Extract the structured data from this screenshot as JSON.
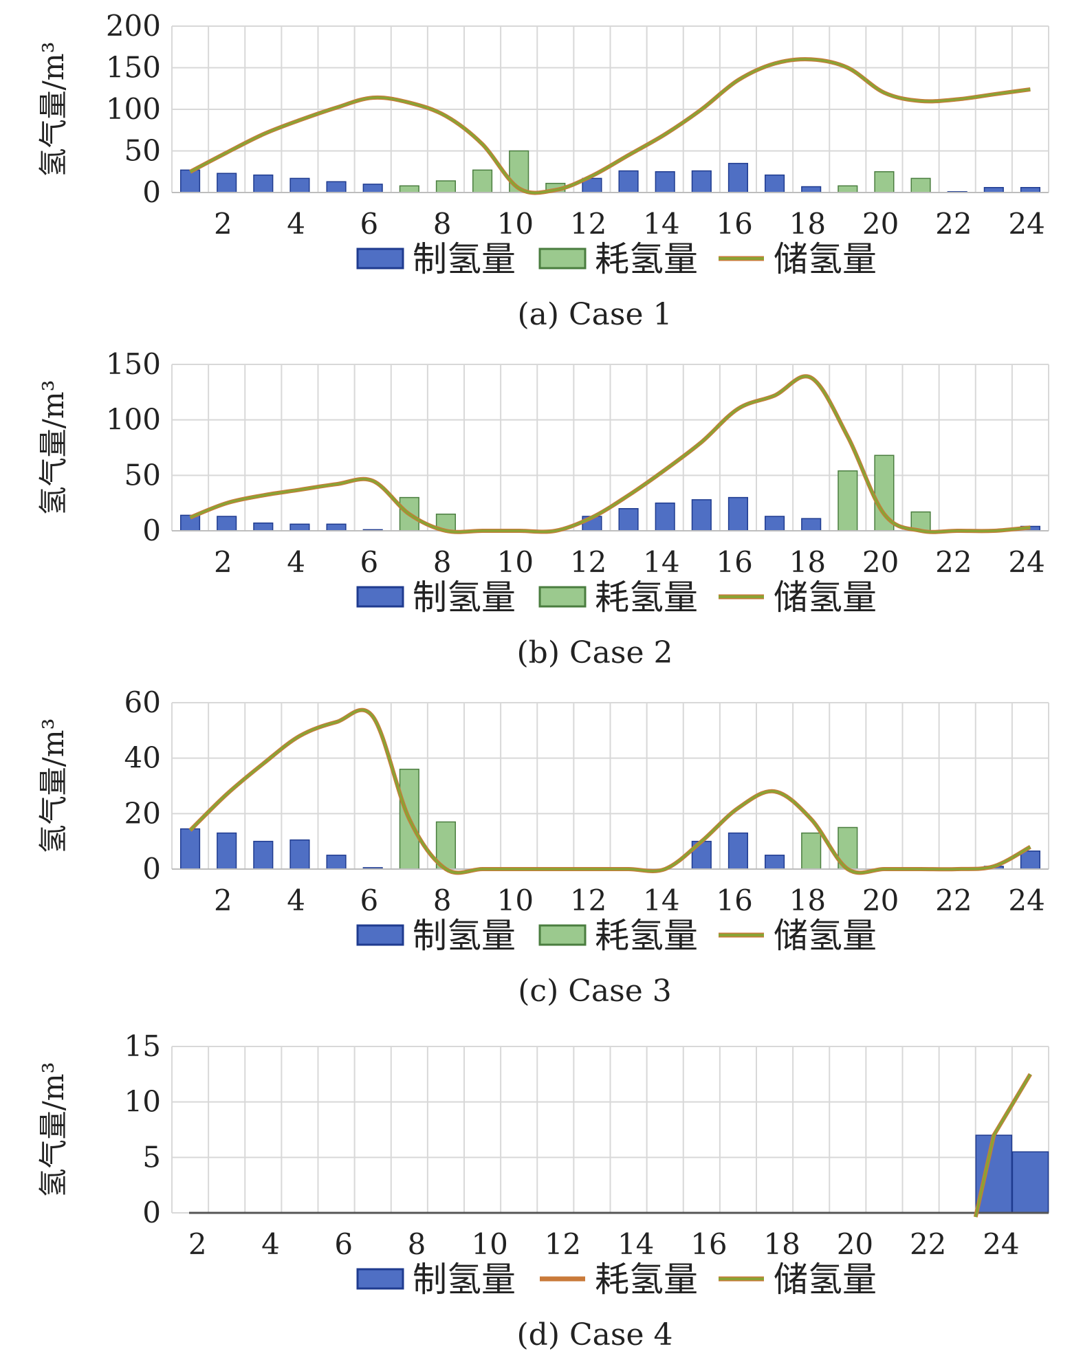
{
  "colors": {
    "production": "#4f6fc4",
    "production_edge": "#1f3b8f",
    "consumption": "#9bc98e",
    "consumption_edge": "#4a7d3f",
    "storage": "#8aa334",
    "storage_edge": "#c97a3a",
    "grid": "#d8d8d8"
  },
  "chart_data": [
    {
      "type": "bar",
      "caption": "(a) Case 1",
      "ylabel": "氢气量/m³",
      "ylim": [
        0,
        200
      ],
      "yticks": [
        0,
        50,
        100,
        150,
        200
      ],
      "x": [
        1,
        2,
        3,
        4,
        5,
        6,
        7,
        8,
        9,
        10,
        11,
        12,
        13,
        14,
        15,
        16,
        17,
        18,
        19,
        20,
        21,
        22,
        23,
        24
      ],
      "xticks": [
        2,
        4,
        6,
        8,
        10,
        12,
        14,
        16,
        18,
        20,
        22,
        24
      ],
      "legend": [
        "制氢量",
        "耗氢量",
        "储氢量"
      ],
      "series": [
        {
          "name": "制氢量",
          "kind": "bar",
          "values": [
            27,
            23,
            21,
            17,
            13,
            10,
            0,
            0,
            0,
            0,
            0,
            17,
            26,
            25,
            26,
            35,
            21,
            7,
            0,
            0,
            0,
            1,
            6,
            6
          ]
        },
        {
          "name": "耗氢量",
          "kind": "bar",
          "values": [
            0,
            0,
            0,
            0,
            0,
            0,
            8,
            14,
            27,
            50,
            11,
            0,
            0,
            0,
            0,
            0,
            0,
            0,
            8,
            25,
            17,
            0,
            0,
            0
          ]
        },
        {
          "name": "储氢量",
          "kind": "line",
          "values": [
            25,
            48,
            70,
            87,
            102,
            114,
            108,
            92,
            58,
            5,
            3,
            20,
            45,
            70,
            100,
            135,
            155,
            160,
            150,
            120,
            110,
            112,
            118,
            124
          ]
        }
      ]
    },
    {
      "type": "bar",
      "caption": "(b) Case 2",
      "ylabel": "氢气量/m³",
      "ylim": [
        0,
        150
      ],
      "yticks": [
        0,
        50,
        100,
        150
      ],
      "x": [
        1,
        2,
        3,
        4,
        5,
        6,
        7,
        8,
        9,
        10,
        11,
        12,
        13,
        14,
        15,
        16,
        17,
        18,
        19,
        20,
        21,
        22,
        23,
        24
      ],
      "xticks": [
        2,
        4,
        6,
        8,
        10,
        12,
        14,
        16,
        18,
        20,
        22,
        24
      ],
      "legend": [
        "制氢量",
        "耗氢量",
        "储氢量"
      ],
      "series": [
        {
          "name": "制氢量",
          "kind": "bar",
          "values": [
            14,
            13,
            7,
            6,
            6,
            1,
            0,
            0,
            0,
            0,
            0,
            13,
            20,
            25,
            28,
            30,
            13,
            11,
            0,
            0,
            0,
            0,
            0,
            4
          ]
        },
        {
          "name": "耗氢量",
          "kind": "bar",
          "values": [
            0,
            0,
            0,
            0,
            0,
            0,
            30,
            15,
            0,
            0,
            0,
            0,
            0,
            0,
            0,
            0,
            0,
            0,
            54,
            68,
            17,
            0,
            0,
            0
          ]
        },
        {
          "name": "储氢量",
          "kind": "line",
          "values": [
            12,
            25,
            32,
            37,
            42,
            45,
            15,
            0,
            0,
            0,
            0,
            12,
            32,
            55,
            80,
            110,
            122,
            138,
            85,
            15,
            0,
            0,
            0,
            3
          ]
        }
      ]
    },
    {
      "type": "bar",
      "caption": "(c) Case 3",
      "ylabel": "氢气量/m³",
      "ylim": [
        0,
        60
      ],
      "yticks": [
        0,
        20,
        40,
        60
      ],
      "x": [
        1,
        2,
        3,
        4,
        5,
        6,
        7,
        8,
        9,
        10,
        11,
        12,
        13,
        14,
        15,
        16,
        17,
        18,
        19,
        20,
        21,
        22,
        23,
        24
      ],
      "xticks": [
        2,
        4,
        6,
        8,
        10,
        12,
        14,
        16,
        18,
        20,
        22,
        24
      ],
      "legend": [
        "制氢量",
        "耗氢量",
        "储氢量"
      ],
      "series": [
        {
          "name": "制氢量",
          "kind": "bar",
          "values": [
            14.5,
            13,
            10,
            10.5,
            5,
            0.5,
            0,
            0,
            0,
            0,
            0,
            0,
            0,
            0,
            10,
            13,
            5,
            0,
            0,
            0,
            0,
            0,
            1,
            6.5
          ]
        },
        {
          "name": "耗氢量",
          "kind": "bar",
          "values": [
            0,
            0,
            0,
            0,
            0,
            0,
            36,
            17,
            0,
            0,
            0,
            0,
            0,
            0,
            0,
            0,
            0,
            13,
            15,
            0,
            0,
            0,
            0,
            0
          ]
        },
        {
          "name": "储氢量",
          "kind": "line",
          "values": [
            14,
            27,
            38,
            48,
            53,
            55,
            18,
            0,
            0,
            0,
            0,
            0,
            0,
            0,
            10,
            22,
            28,
            18,
            0,
            0,
            0,
            0,
            1,
            8
          ]
        }
      ]
    },
    {
      "type": "bar",
      "caption": "(d) Case 4",
      "ylabel": "氢气量/m³",
      "ylim": [
        0,
        15
      ],
      "yticks": [
        0,
        5,
        10,
        15
      ],
      "x": [
        1,
        2,
        3,
        4,
        5,
        6,
        7,
        8,
        9,
        10,
        11,
        12,
        13,
        14,
        15,
        16,
        17,
        18,
        19,
        20,
        21,
        22,
        23,
        24
      ],
      "xticks": [
        2,
        4,
        6,
        8,
        10,
        12,
        14,
        16,
        18,
        20,
        22,
        24
      ],
      "legend": [
        "制氢量",
        "耗氢量",
        "储氢量"
      ],
      "series": [
        {
          "name": "制氢量",
          "kind": "bar",
          "values": [
            0,
            0,
            0,
            0,
            0,
            0,
            0,
            0,
            0,
            0,
            0,
            0,
            0,
            0,
            0,
            0,
            0,
            0,
            0,
            0,
            0,
            0,
            7,
            5.5
          ]
        },
        {
          "name": "耗氢量",
          "kind": "line",
          "values": [
            0,
            0,
            0,
            0,
            0,
            0,
            0,
            0,
            0,
            0,
            0,
            0,
            0,
            0,
            0,
            0,
            0,
            0,
            0,
            0,
            0,
            0,
            0,
            0
          ]
        },
        {
          "name": "储氢量",
          "kind": "line",
          "values": [
            0,
            0,
            0,
            0,
            0,
            0,
            0,
            0,
            0,
            0,
            0,
            0,
            0,
            0,
            0,
            0,
            0,
            0,
            0,
            0,
            0,
            0,
            7,
            12.5
          ]
        }
      ]
    }
  ]
}
